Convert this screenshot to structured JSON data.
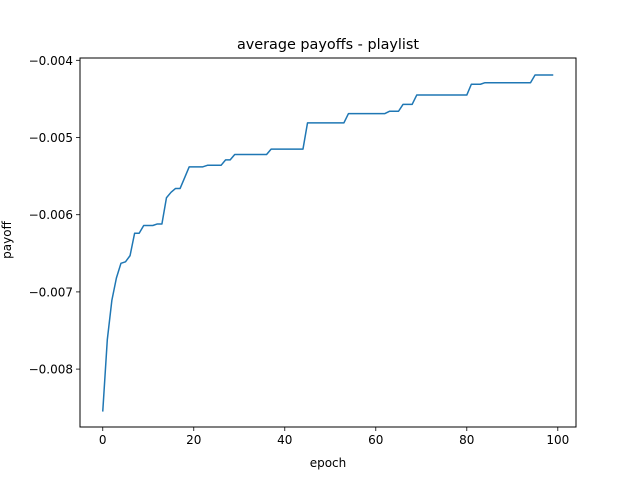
{
  "chart_data": {
    "type": "line",
    "title": "average payoffs - playlist",
    "xlabel": "epoch",
    "ylabel": "payoff",
    "xlim": [
      -5,
      104
    ],
    "ylim": [
      -0.00875,
      -0.00397
    ],
    "xticks": [
      0,
      20,
      40,
      60,
      80,
      100
    ],
    "yticks": [
      -0.008,
      -0.007,
      -0.006,
      -0.005,
      -0.004
    ],
    "xtick_labels": [
      "0",
      "20",
      "40",
      "60",
      "80",
      "100"
    ],
    "ytick_labels": [
      "−0.008",
      "−0.007",
      "−0.006",
      "−0.005",
      "−0.004"
    ],
    "grid": false,
    "legend": "none",
    "series": [
      {
        "color": "#1f77b4",
        "x": [
          0,
          1,
          2,
          3,
          4,
          5,
          6,
          7,
          8,
          9,
          10,
          11,
          12,
          13,
          14,
          15,
          16,
          17,
          18,
          19,
          20,
          21,
          22,
          23,
          24,
          25,
          26,
          27,
          28,
          29,
          30,
          31,
          32,
          33,
          34,
          35,
          36,
          37,
          38,
          39,
          40,
          41,
          42,
          43,
          44,
          45,
          46,
          47,
          48,
          49,
          50,
          51,
          52,
          53,
          54,
          55,
          56,
          57,
          58,
          59,
          60,
          61,
          62,
          63,
          64,
          65,
          66,
          67,
          68,
          69,
          70,
          71,
          72,
          73,
          74,
          75,
          76,
          77,
          78,
          79,
          80,
          81,
          82,
          83,
          84,
          85,
          86,
          87,
          88,
          89,
          90,
          91,
          92,
          93,
          94,
          95,
          96,
          97,
          98,
          99
        ],
        "y": [
          -0.00855,
          -0.00762,
          -0.00711,
          -0.00682,
          -0.00663,
          -0.00661,
          -0.00653,
          -0.00624,
          -0.00624,
          -0.00614,
          -0.00614,
          -0.00614,
          -0.00612,
          -0.00612,
          -0.00578,
          -0.00571,
          -0.00566,
          -0.00566,
          -0.00552,
          -0.00538,
          -0.00538,
          -0.00538,
          -0.00538,
          -0.00536,
          -0.00536,
          -0.00536,
          -0.00536,
          -0.00529,
          -0.00529,
          -0.00522,
          -0.00522,
          -0.00522,
          -0.00522,
          -0.00522,
          -0.00522,
          -0.00522,
          -0.00522,
          -0.00515,
          -0.00515,
          -0.00515,
          -0.00515,
          -0.00515,
          -0.00515,
          -0.00515,
          -0.00515,
          -0.00481,
          -0.00481,
          -0.00481,
          -0.00481,
          -0.00481,
          -0.00481,
          -0.00481,
          -0.00481,
          -0.00481,
          -0.00469,
          -0.00469,
          -0.00469,
          -0.00469,
          -0.00469,
          -0.00469,
          -0.00469,
          -0.00469,
          -0.00469,
          -0.00466,
          -0.00466,
          -0.00466,
          -0.00457,
          -0.00457,
          -0.00457,
          -0.00445,
          -0.00445,
          -0.00445,
          -0.00445,
          -0.00445,
          -0.00445,
          -0.00445,
          -0.00445,
          -0.00445,
          -0.00445,
          -0.00445,
          -0.00445,
          -0.00431,
          -0.00431,
          -0.00431,
          -0.00429,
          -0.00429,
          -0.00429,
          -0.00429,
          -0.00429,
          -0.00429,
          -0.00429,
          -0.00429,
          -0.00429,
          -0.00429,
          -0.00429,
          -0.00419,
          -0.00419,
          -0.00419,
          -0.00419,
          -0.00419
        ]
      }
    ]
  }
}
